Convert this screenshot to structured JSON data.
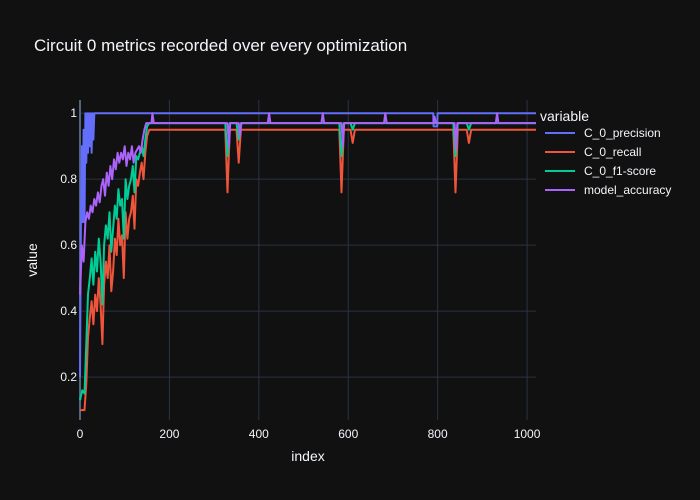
{
  "chart_data": {
    "type": "line",
    "title": "Circuit 0 metrics recorded over every optimization",
    "xlabel": "index",
    "ylabel": "value",
    "xlim": [
      0,
      1020
    ],
    "ylim": [
      0.07,
      1.04
    ],
    "x_ticks": [
      0,
      200,
      400,
      600,
      800,
      1000
    ],
    "y_ticks": [
      0.2,
      0.4,
      0.6,
      0.8,
      1
    ],
    "grid": true,
    "legend_title": "variable",
    "legend_position": "top-right",
    "series": [
      {
        "name": "C_0_precision",
        "color": "#636efa",
        "x": [
          0,
          2,
          4,
          6,
          8,
          10,
          12,
          14,
          16,
          18,
          20,
          22,
          24,
          26,
          28,
          30,
          32,
          790,
          791,
          799,
          800,
          1020
        ],
        "y": [
          0.2,
          0.67,
          0.9,
          0.67,
          0.95,
          0.67,
          1,
          0.85,
          1,
          0.88,
          1,
          0.9,
          1,
          0.88,
          1,
          0.92,
          1,
          1,
          0.96,
          0.96,
          1,
          1
        ]
      },
      {
        "name": "C_0_recall",
        "color": "#ef553b",
        "x": [
          0,
          5,
          10,
          14,
          18,
          22,
          26,
          30,
          34,
          38,
          42,
          46,
          50,
          54,
          58,
          62,
          66,
          70,
          74,
          78,
          82,
          86,
          90,
          94,
          98,
          102,
          106,
          110,
          114,
          118,
          122,
          126,
          130,
          134,
          138,
          142,
          146,
          150,
          155,
          325,
          330,
          335,
          340,
          350,
          355,
          360,
          365,
          580,
          585,
          590,
          595,
          605,
          610,
          615,
          835,
          840,
          845,
          850,
          865,
          870,
          875,
          1020
        ],
        "y": [
          0.1,
          0.1,
          0.1,
          0.18,
          0.32,
          0.38,
          0.43,
          0.36,
          0.45,
          0.4,
          0.5,
          0.42,
          0.3,
          0.48,
          0.55,
          0.5,
          0.6,
          0.46,
          0.52,
          0.62,
          0.57,
          0.68,
          0.6,
          0.63,
          0.5,
          0.7,
          0.62,
          0.68,
          0.7,
          0.75,
          0.65,
          0.8,
          0.78,
          0.82,
          0.85,
          0.8,
          0.88,
          0.93,
          0.95,
          0.95,
          0.76,
          0.95,
          0.95,
          0.95,
          0.85,
          0.95,
          0.95,
          0.95,
          0.76,
          0.95,
          0.95,
          0.95,
          0.91,
          0.95,
          0.95,
          0.76,
          0.95,
          0.95,
          0.95,
          0.91,
          0.95,
          0.95
        ]
      },
      {
        "name": "C_0_f1-score",
        "color": "#00cc96",
        "x": [
          0,
          5,
          10,
          14,
          18,
          22,
          26,
          30,
          34,
          38,
          42,
          46,
          50,
          54,
          58,
          62,
          66,
          70,
          74,
          78,
          82,
          86,
          90,
          94,
          98,
          102,
          106,
          110,
          114,
          118,
          122,
          126,
          130,
          134,
          138,
          142,
          146,
          150,
          155,
          325,
          330,
          335,
          340,
          350,
          355,
          360,
          365,
          580,
          585,
          590,
          595,
          605,
          610,
          615,
          835,
          840,
          845,
          850,
          865,
          870,
          875,
          1020
        ],
        "y": [
          0.13,
          0.16,
          0.15,
          0.3,
          0.45,
          0.5,
          0.56,
          0.48,
          0.58,
          0.52,
          0.62,
          0.55,
          0.42,
          0.6,
          0.66,
          0.62,
          0.7,
          0.58,
          0.65,
          0.72,
          0.68,
          0.77,
          0.72,
          0.74,
          0.62,
          0.8,
          0.74,
          0.78,
          0.8,
          0.84,
          0.76,
          0.87,
          0.86,
          0.88,
          0.9,
          0.87,
          0.92,
          0.96,
          0.97,
          0.97,
          0.87,
          0.97,
          0.97,
          0.97,
          0.92,
          0.97,
          0.97,
          0.97,
          0.87,
          0.97,
          0.97,
          0.97,
          0.95,
          0.97,
          0.97,
          0.87,
          0.97,
          0.97,
          0.97,
          0.95,
          0.97,
          0.97
        ]
      },
      {
        "name": "model_accuracy",
        "color": "#ab63fa",
        "x": [
          0,
          4,
          8,
          12,
          16,
          20,
          24,
          28,
          32,
          36,
          40,
          44,
          48,
          52,
          56,
          60,
          64,
          68,
          72,
          76,
          80,
          84,
          88,
          92,
          96,
          100,
          104,
          108,
          112,
          116,
          120,
          124,
          128,
          132,
          136,
          140,
          144,
          148,
          152,
          156,
          160,
          162,
          165,
          170,
          330,
          333,
          336,
          340,
          355,
          358,
          361,
          420,
          423,
          426,
          540,
          543,
          546,
          585,
          588,
          591,
          680,
          683,
          686,
          790,
          793,
          796,
          838,
          841,
          844,
          930,
          933,
          936,
          1020
        ],
        "y": [
          0.45,
          0.6,
          0.55,
          0.67,
          0.7,
          0.68,
          0.72,
          0.7,
          0.74,
          0.72,
          0.76,
          0.73,
          0.78,
          0.8,
          0.75,
          0.82,
          0.78,
          0.84,
          0.8,
          0.86,
          0.83,
          0.88,
          0.85,
          0.88,
          0.86,
          0.9,
          0.84,
          0.88,
          0.86,
          0.9,
          0.85,
          0.88,
          0.89,
          0.9,
          0.88,
          0.92,
          0.95,
          0.97,
          0.97,
          0.97,
          0.97,
          1,
          0.97,
          0.97,
          0.97,
          0.9,
          0.97,
          0.97,
          0.97,
          0.93,
          0.97,
          0.97,
          1,
          0.97,
          0.97,
          1,
          0.97,
          0.97,
          0.9,
          0.97,
          0.97,
          1,
          0.97,
          0.97,
          0.99,
          0.97,
          0.97,
          0.89,
          0.97,
          0.97,
          1,
          0.97,
          0.97
        ]
      }
    ]
  }
}
